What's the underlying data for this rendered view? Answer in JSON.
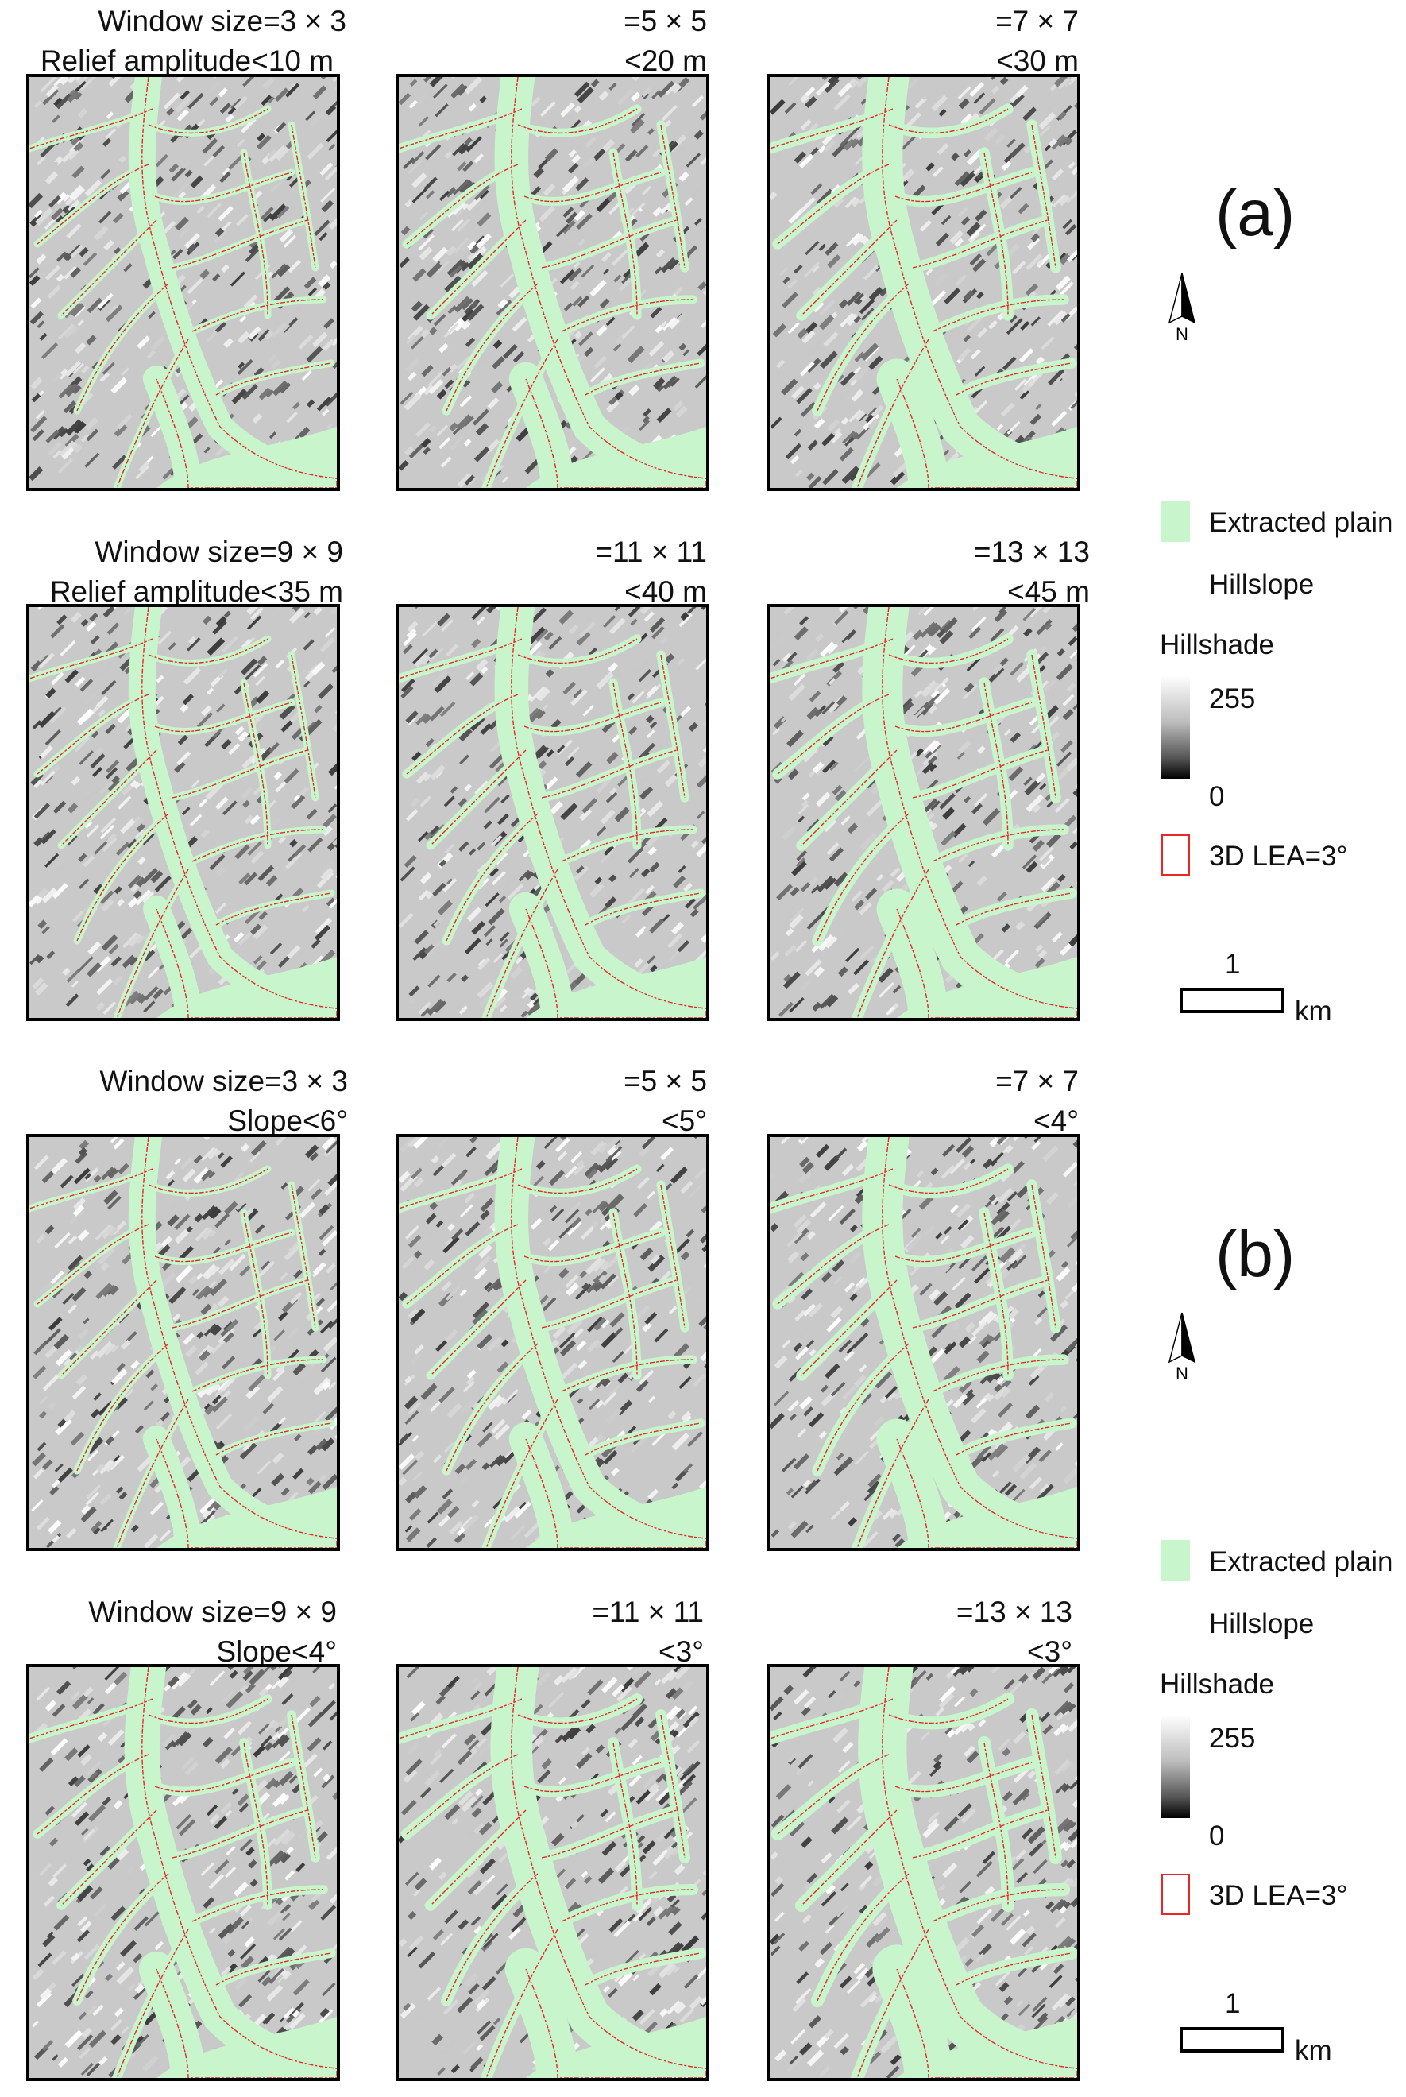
{
  "panels": [
    {
      "title": "Window size=3 × 3",
      "subtitle": "Relief amplitude<10 m"
    },
    {
      "title": "=5 × 5",
      "subtitle": "<20 m"
    },
    {
      "title": "=7 × 7",
      "subtitle": "<30 m"
    },
    {
      "title": "Window size=9 × 9",
      "subtitle": "Relief amplitude<35 m"
    },
    {
      "title": "=11 × 11",
      "subtitle": "<40 m"
    },
    {
      "title": "=13 × 13",
      "subtitle": "<45 m"
    },
    {
      "title": "Window size=3 × 3",
      "subtitle": "Slope<6°"
    },
    {
      "title": "=5 × 5",
      "subtitle": "<5°"
    },
    {
      "title": "=7 × 7",
      "subtitle": "<4°"
    },
    {
      "title": "Window size=9 × 9",
      "subtitle": "Slope<4°"
    },
    {
      "title": "=11 × 11",
      "subtitle": "<3°"
    },
    {
      "title": "=13 × 13",
      "subtitle": "<3°"
    }
  ],
  "figure_letters": [
    "(a)",
    "(b)"
  ],
  "north_label": "N",
  "legend": {
    "plain": "Extracted plain",
    "hillslope": "Hillslope",
    "hillshade": "Hillshade",
    "ramp_max": "255",
    "ramp_min": "0",
    "lea": "3D LEA=3°"
  },
  "scalebar": {
    "value": "1",
    "unit": "km"
  },
  "colors": {
    "plain": "#c8f5cc",
    "lea_outline": "#e8262a",
    "hillshade_high": "#ffffff",
    "hillshade_low": "#000000"
  }
}
